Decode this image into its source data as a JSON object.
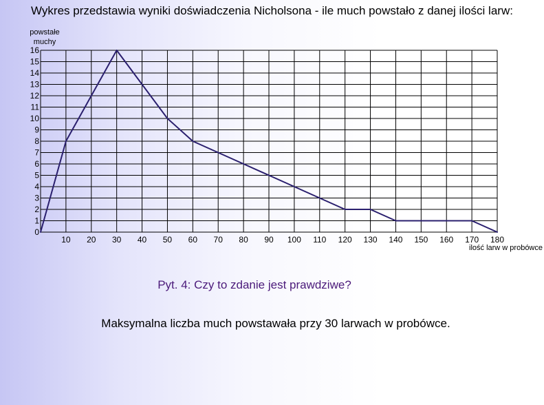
{
  "header": {
    "title": "Wykres przedstawia wyniki doświadczenia Nicholsona - ile much powstało z danej ilości larw:"
  },
  "question": {
    "label": "Pyt. 4: Czy to zdanie jest prawdziwe?",
    "statement": "Maksymalna liczba much powstawała przy 30 larwach w probówce."
  },
  "chart_data": {
    "type": "line",
    "ylabel_line1": "powstałe",
    "ylabel_line2": "muchy",
    "xlabel": "ilość larw w probówce",
    "xlim": [
      0,
      180
    ],
    "ylim": [
      0,
      16
    ],
    "x_ticks": [
      10,
      20,
      30,
      40,
      50,
      60,
      70,
      80,
      90,
      100,
      110,
      120,
      130,
      140,
      150,
      160,
      170,
      180
    ],
    "y_ticks": [
      0,
      1,
      2,
      3,
      4,
      5,
      6,
      7,
      8,
      9,
      10,
      11,
      12,
      13,
      14,
      15,
      16
    ],
    "grid": true,
    "x": [
      0,
      10,
      30,
      40,
      50,
      60,
      70,
      80,
      90,
      100,
      110,
      120,
      130,
      140,
      150,
      160,
      170,
      180
    ],
    "y": [
      0,
      8,
      16,
      13,
      10,
      8,
      7,
      6,
      5,
      4,
      3,
      2,
      2,
      1,
      1,
      1,
      1,
      0
    ],
    "line_color": "#2a1f6e",
    "grid_color": "#000000"
  }
}
